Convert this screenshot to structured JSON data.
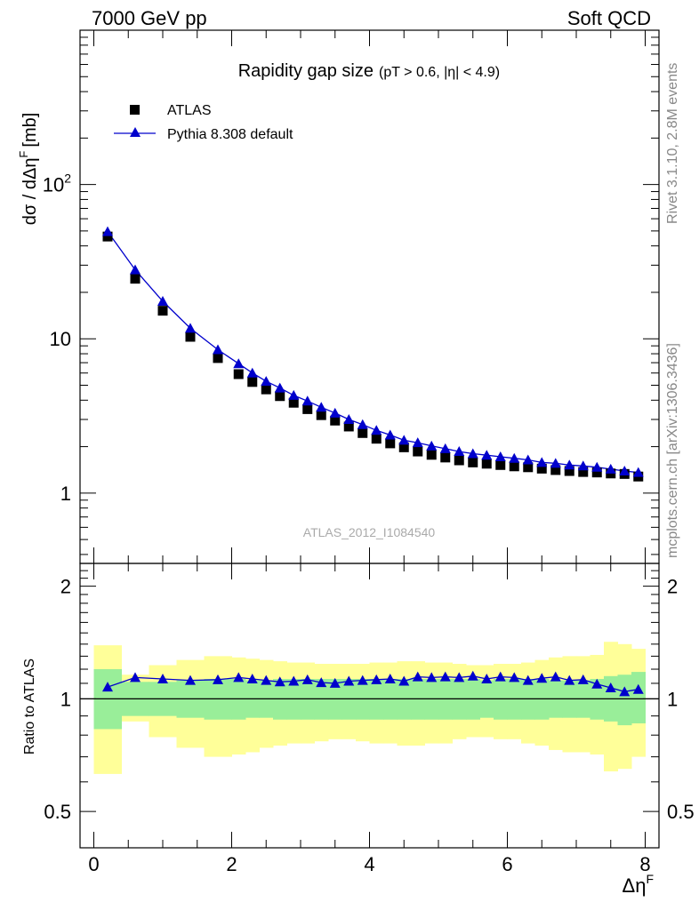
{
  "header": {
    "left": "7000 GeV pp",
    "right": "Soft QCD"
  },
  "side_text": {
    "top": "Rivet 3.1.10,  2.8M events",
    "bottom": "mcplots.cern.ch [arXiv:1306.3436]"
  },
  "chart_data": [
    {
      "type": "scatter",
      "title": "Rapidity gap size",
      "subtitle": "(pT > 0.6, |η| < 4.9)",
      "ylabel": "dσ / dΔη",
      "ylabel_sup": "F",
      "ylabel_unit": "[mb]",
      "watermark": "ATLAS_2012_I1084540",
      "yscale": "log",
      "xlim": [
        -0.2,
        8.2
      ],
      "ylim": [
        0.35,
        1000
      ],
      "yticks": [
        {
          "value": 1,
          "label": "1"
        },
        {
          "value": 10,
          "label": "10"
        },
        {
          "value": 100,
          "label": "10",
          "sup": "2"
        }
      ],
      "legend": {
        "placement": "top-left"
      },
      "x": [
        0.2,
        0.6,
        1.0,
        1.4,
        1.8,
        2.1,
        2.3,
        2.5,
        2.7,
        2.9,
        3.1,
        3.3,
        3.5,
        3.7,
        3.9,
        4.1,
        4.3,
        4.5,
        4.7,
        4.9,
        5.1,
        5.3,
        5.5,
        5.7,
        5.9,
        6.1,
        6.3,
        6.5,
        6.7,
        6.9,
        7.1,
        7.3,
        7.5,
        7.7,
        7.9
      ],
      "series": [
        {
          "name": "ATLAS",
          "marker": "square",
          "color": "#000000",
          "values": [
            46,
            24.5,
            15.2,
            10.3,
            7.5,
            5.9,
            5.25,
            4.7,
            4.25,
            3.85,
            3.5,
            3.2,
            2.95,
            2.7,
            2.45,
            2.25,
            2.1,
            1.98,
            1.86,
            1.77,
            1.7,
            1.63,
            1.58,
            1.55,
            1.52,
            1.49,
            1.47,
            1.44,
            1.41,
            1.39,
            1.37,
            1.36,
            1.34,
            1.33,
            1.28
          ]
        },
        {
          "name": "Pythia 8.308 default",
          "marker": "triangle",
          "color": "#0000cc",
          "values": [
            49.5,
            28,
            17.5,
            11.7,
            8.5,
            6.9,
            6.0,
            5.3,
            4.8,
            4.3,
            3.95,
            3.6,
            3.3,
            3.0,
            2.78,
            2.55,
            2.38,
            2.2,
            2.12,
            2.02,
            1.94,
            1.86,
            1.8,
            1.76,
            1.72,
            1.68,
            1.64,
            1.58,
            1.56,
            1.52,
            1.5,
            1.47,
            1.43,
            1.39,
            1.36
          ]
        }
      ]
    },
    {
      "type": "line",
      "ylabel": "Ratio to ATLAS",
      "xlabel": "Δη",
      "xlabel_sup": "F",
      "xlim": [
        -0.2,
        8.2
      ],
      "ylim": [
        0.4,
        2.3
      ],
      "yscale": "log",
      "xticks": [
        0,
        2,
        4,
        6,
        8
      ],
      "yticks": [
        0.5,
        1,
        2
      ],
      "reference_line": 1,
      "bands": {
        "edges": [
          0,
          0.4,
          0.8,
          1.2,
          1.6,
          2.0,
          2.2,
          2.4,
          2.6,
          2.8,
          3.0,
          3.2,
          3.4,
          3.6,
          3.8,
          4.0,
          4.2,
          4.4,
          4.6,
          4.8,
          5.0,
          5.2,
          5.4,
          5.6,
          5.8,
          6.0,
          6.2,
          6.4,
          6.6,
          6.8,
          7.0,
          7.2,
          7.4,
          7.6,
          7.8,
          8.0
        ],
        "green": {
          "color": "#99ee99",
          "lo": [
            0.83,
            0.9,
            0.9,
            0.89,
            0.88,
            0.88,
            0.89,
            0.89,
            0.88,
            0.88,
            0.88,
            0.88,
            0.88,
            0.88,
            0.88,
            0.88,
            0.88,
            0.88,
            0.88,
            0.88,
            0.88,
            0.88,
            0.88,
            0.89,
            0.88,
            0.88,
            0.88,
            0.88,
            0.89,
            0.89,
            0.89,
            0.88,
            0.87,
            0.85,
            0.86
          ],
          "hi": [
            1.2,
            1.11,
            1.11,
            1.12,
            1.13,
            1.13,
            1.12,
            1.12,
            1.13,
            1.13,
            1.13,
            1.13,
            1.13,
            1.13,
            1.13,
            1.13,
            1.13,
            1.13,
            1.13,
            1.13,
            1.13,
            1.13,
            1.13,
            1.12,
            1.13,
            1.13,
            1.13,
            1.13,
            1.12,
            1.12,
            1.12,
            1.13,
            1.15,
            1.16,
            1.18
          ]
        },
        "yellow": {
          "color": "#ffff99",
          "lo": [
            0.63,
            0.87,
            0.79,
            0.74,
            0.7,
            0.71,
            0.72,
            0.74,
            0.75,
            0.76,
            0.76,
            0.77,
            0.78,
            0.78,
            0.77,
            0.76,
            0.76,
            0.75,
            0.75,
            0.76,
            0.76,
            0.78,
            0.79,
            0.79,
            0.78,
            0.78,
            0.76,
            0.75,
            0.73,
            0.72,
            0.72,
            0.71,
            0.64,
            0.65,
            0.7
          ],
          "hi": [
            1.39,
            1.16,
            1.23,
            1.27,
            1.3,
            1.29,
            1.28,
            1.27,
            1.26,
            1.25,
            1.25,
            1.24,
            1.24,
            1.24,
            1.24,
            1.25,
            1.25,
            1.26,
            1.26,
            1.25,
            1.25,
            1.24,
            1.23,
            1.23,
            1.24,
            1.24,
            1.25,
            1.27,
            1.29,
            1.3,
            1.3,
            1.31,
            1.42,
            1.4,
            1.36
          ]
        }
      },
      "series": [
        {
          "name": "Pythia 8.308 default",
          "marker": "triangle",
          "color": "#0000cc",
          "x": [
            0.2,
            0.6,
            1.0,
            1.4,
            1.8,
            2.1,
            2.3,
            2.5,
            2.7,
            2.9,
            3.1,
            3.3,
            3.5,
            3.7,
            3.9,
            4.1,
            4.3,
            4.5,
            4.7,
            4.9,
            5.1,
            5.3,
            5.5,
            5.7,
            5.9,
            6.1,
            6.3,
            6.5,
            6.7,
            6.9,
            7.1,
            7.3,
            7.5,
            7.7,
            7.9
          ],
          "values": [
            1.075,
            1.14,
            1.13,
            1.12,
            1.125,
            1.14,
            1.13,
            1.12,
            1.11,
            1.115,
            1.125,
            1.105,
            1.1,
            1.115,
            1.12,
            1.125,
            1.13,
            1.115,
            1.145,
            1.14,
            1.145,
            1.14,
            1.15,
            1.13,
            1.145,
            1.14,
            1.12,
            1.135,
            1.145,
            1.12,
            1.125,
            1.095,
            1.07,
            1.045,
            1.06
          ]
        }
      ]
    }
  ]
}
